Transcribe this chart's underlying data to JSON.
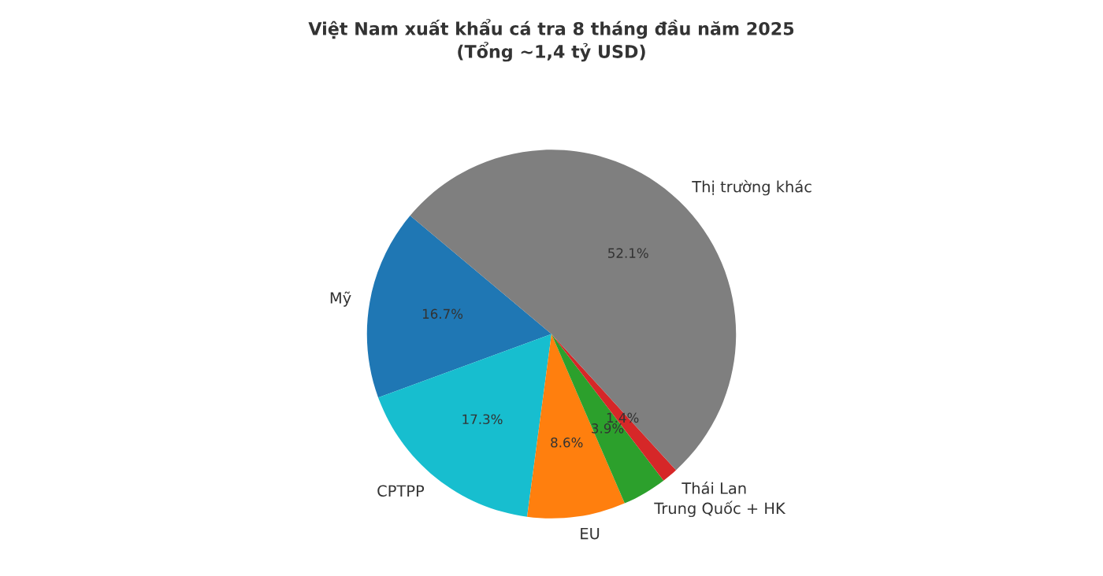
{
  "chart_data": {
    "type": "pie",
    "title": "Việt Nam xuất khẩu cá tra 8 tháng đầu năm 2025\n(Tổng ~1,4 tỷ USD)",
    "categories": [
      "Mỹ",
      "CPTPP",
      "EU",
      "Trung Quốc + HK",
      "Thái Lan",
      "Thị trường khác"
    ],
    "values": [
      16.7,
      17.3,
      8.6,
      3.9,
      1.4,
      52.1
    ],
    "colors": [
      "#1f77b4",
      "#17becf",
      "#ff7f0e",
      "#2ca02c",
      "#d62728",
      "#7f7f7f"
    ],
    "value_labels": [
      "16.7%",
      "17.3%",
      "8.6%",
      "3.9%",
      "1.4%",
      "52.1%"
    ]
  }
}
